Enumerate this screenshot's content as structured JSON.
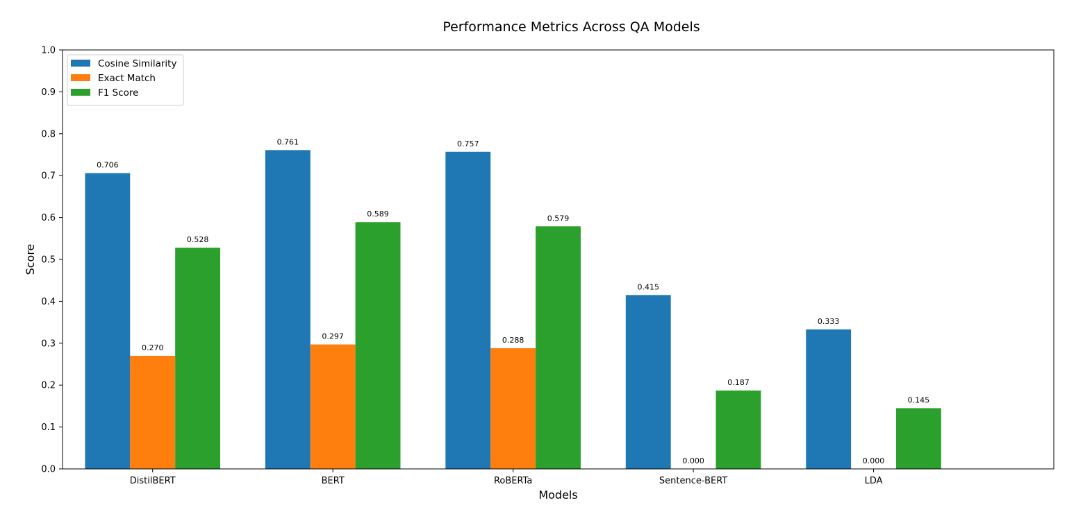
{
  "chart_data": {
    "type": "bar",
    "title": "Performance Metrics Across QA Models",
    "xlabel": "Models",
    "ylabel": "Score",
    "ylim": [
      0,
      1.0
    ],
    "yticks": [
      "0.0",
      "0.1",
      "0.2",
      "0.3",
      "0.4",
      "0.5",
      "0.6",
      "0.7",
      "0.8",
      "0.9",
      "1.0"
    ],
    "categories": [
      "DistilBERT",
      "BERT",
      "RoBERTa",
      "Sentence-BERT",
      "LDA"
    ],
    "series": [
      {
        "name": "Cosine Similarity",
        "color": "#1f77b4",
        "values": [
          0.706,
          0.761,
          0.757,
          0.415,
          0.333
        ],
        "labels": [
          "0.706",
          "0.761",
          "0.757",
          "0.415",
          "0.333"
        ]
      },
      {
        "name": "Exact Match",
        "color": "#ff7f0e",
        "values": [
          0.27,
          0.297,
          0.288,
          0.0,
          0.0
        ],
        "labels": [
          "0.270",
          "0.297",
          "0.288",
          "0.000",
          "0.000"
        ]
      },
      {
        "name": "F1 Score",
        "color": "#2ca02c",
        "values": [
          0.528,
          0.589,
          0.579,
          0.187,
          0.145
        ],
        "labels": [
          "0.528",
          "0.589",
          "0.579",
          "0.187",
          "0.145"
        ]
      }
    ],
    "grid": false,
    "legend": "top-left"
  }
}
